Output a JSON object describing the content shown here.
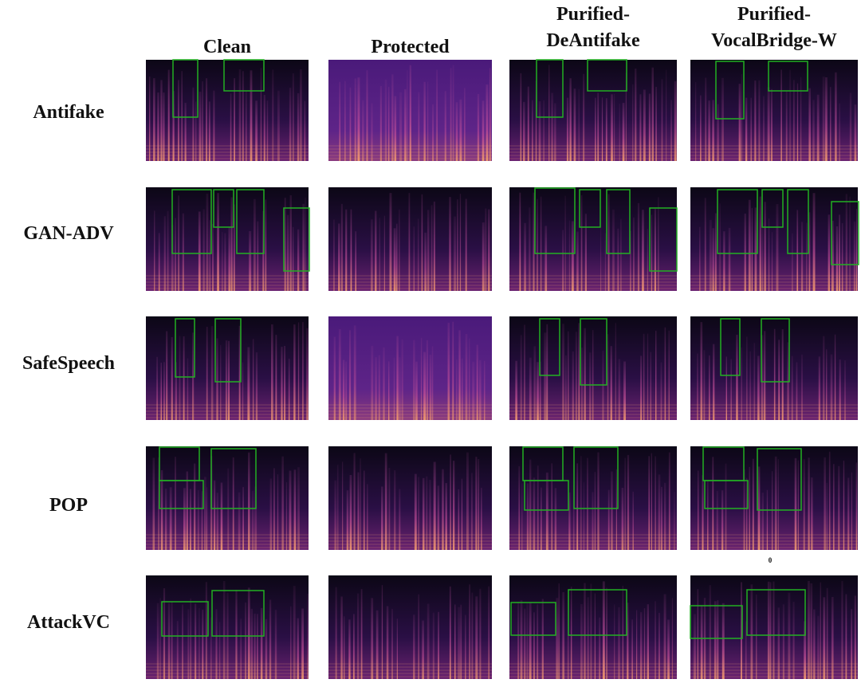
{
  "columns": [
    [
      "Clean"
    ],
    [
      "Protected"
    ],
    [
      "Purified-",
      "DeAntifake"
    ],
    [
      "Purified-",
      "VocalBridge-W"
    ]
  ],
  "rows": [
    "Antifake",
    "GAN-ADV",
    "SafeSpeech",
    "POP",
    "AttackVC"
  ],
  "stray_mark": "0"
}
